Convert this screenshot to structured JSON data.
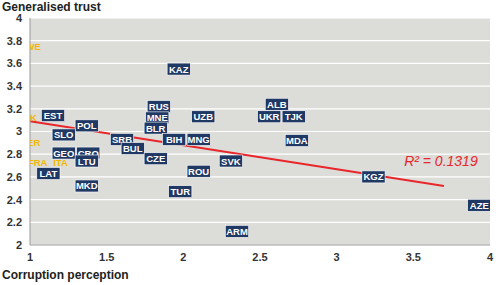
{
  "chart_data": {
    "type": "scatter",
    "x_label": "Corruption perception",
    "y_label": "Generalised trust",
    "xlim": [
      1,
      4
    ],
    "xticks": [
      1,
      1.5,
      2,
      2.5,
      3,
      3.5,
      4
    ],
    "ylim": [
      2,
      4
    ],
    "yticks": [
      2,
      2.2,
      2.4,
      2.6,
      2.8,
      3,
      3.2,
      3.4,
      3.6,
      3.8,
      4
    ],
    "grid": true,
    "series": [
      {
        "type": "scatter",
        "labels": [
          "SWE",
          "UK",
          "EST",
          "POL",
          "SLO",
          "GER",
          "RUS",
          "MNE",
          "BLR",
          "KAZ",
          "SRB",
          "BIH",
          "UZB",
          "MNG",
          "ALB",
          "UKR",
          "TJK",
          "MDA",
          "GEO",
          "CRO",
          "LTU",
          "BUL",
          "CZE",
          "FRA",
          "ITA",
          "LAT",
          "SVK",
          "ROU",
          "MKD",
          "TUR",
          "ARM",
          "KGZ",
          "AZE"
        ],
        "x": [
          1.0,
          1.0,
          1.15,
          1.37,
          1.22,
          1.0,
          1.84,
          1.83,
          1.82,
          1.97,
          1.6,
          1.94,
          2.13,
          2.1,
          2.61,
          2.56,
          2.72,
          2.74,
          1.22,
          1.38,
          1.37,
          1.67,
          1.82,
          1.05,
          1.2,
          1.12,
          2.31,
          2.1,
          1.37,
          1.98,
          2.35,
          3.24,
          3.93
        ],
        "values": [
          3.75,
          3.12,
          3.14,
          3.05,
          2.97,
          2.9,
          3.22,
          3.12,
          3.03,
          3.55,
          2.93,
          2.93,
          3.13,
          2.93,
          3.24,
          3.13,
          3.13,
          2.92,
          2.81,
          2.81,
          2.74,
          2.85,
          2.76,
          2.73,
          2.73,
          2.63,
          2.74,
          2.65,
          2.52,
          2.47,
          2.12,
          2.6,
          2.35
        ],
        "colors": [
          "#f2b705",
          "#f2b705",
          "#1f3864",
          "#1f3864",
          "#1f3864",
          "#f2b705",
          "#1f3864",
          "#1f3864",
          "#1f3864",
          "#1f3864",
          "#1f3864",
          "#1f3864",
          "#1f3864",
          "#1f3864",
          "#1f3864",
          "#1f3864",
          "#1f3864",
          "#1f3864",
          "#1f3864",
          "#1f3864",
          "#1f3864",
          "#1f3864",
          "#1f3864",
          "#f2b705",
          "#f2b705",
          "#1f3864",
          "#1f3864",
          "#1f3864",
          "#1f3864",
          "#1f3864",
          "#1f3864",
          "#1f3864",
          "#1f3864"
        ]
      },
      {
        "type": "line",
        "x": [
          1,
          3.7
        ],
        "values": [
          3.09,
          2.52
        ],
        "color": "#e8262b"
      }
    ],
    "annotations": [
      {
        "text": "R² = 0.1319",
        "x": 3.68,
        "y": 2.74,
        "color": "#e8262b"
      }
    ]
  }
}
